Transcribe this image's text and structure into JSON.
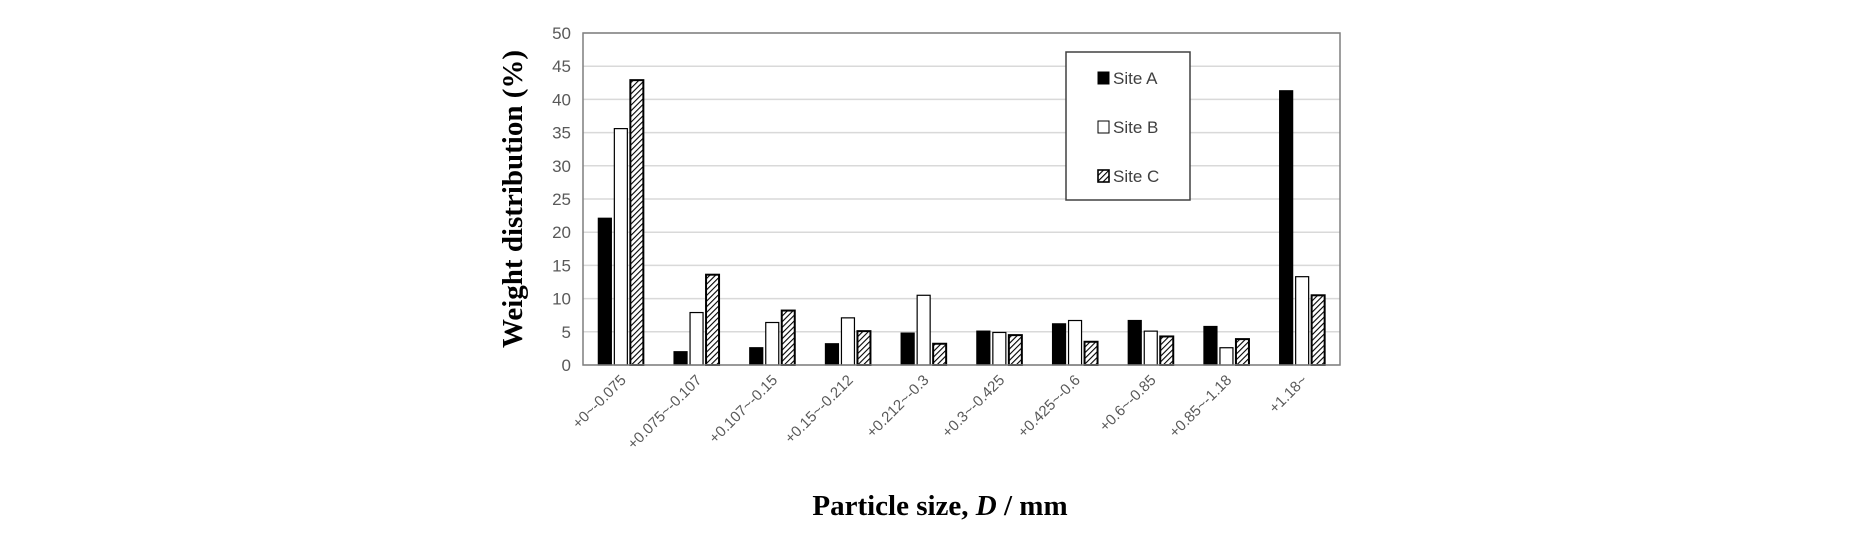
{
  "chart_data": {
    "type": "bar",
    "title": "",
    "xlabel_prefix": "Particle size, ",
    "xlabel_var": "D",
    "xlabel_suffix": " / mm",
    "ylabel": "Weight distribution (%)",
    "ylim": [
      0,
      50
    ],
    "yticks": [
      0,
      5,
      10,
      15,
      20,
      25,
      30,
      35,
      40,
      45,
      50
    ],
    "grid": true,
    "legend_position": "top-right",
    "categories": [
      "+0~-0.075",
      "+0.075~-0.107",
      "+0.107~-0.15",
      "+0.15~-0.212",
      "+0.212~-0.3",
      "+0.3~-0.425",
      "+0.425~-0.6",
      "+0.6~-0.85",
      "+0.85~-1.18",
      "+1.18~"
    ],
    "series": [
      {
        "name": "Site A",
        "fill": "#000000",
        "values": [
          22.1,
          2.0,
          2.6,
          3.2,
          4.8,
          5.1,
          6.2,
          6.7,
          5.8,
          41.3
        ]
      },
      {
        "name": "Site B",
        "fill": "#ffffff",
        "values": [
          35.6,
          7.9,
          6.4,
          7.1,
          10.5,
          4.9,
          6.7,
          5.1,
          2.6,
          13.3
        ]
      },
      {
        "name": "Site C",
        "fill": "hatch",
        "values": [
          42.9,
          13.6,
          8.2,
          5.1,
          3.2,
          4.5,
          3.5,
          4.3,
          3.9,
          10.5
        ]
      }
    ]
  }
}
